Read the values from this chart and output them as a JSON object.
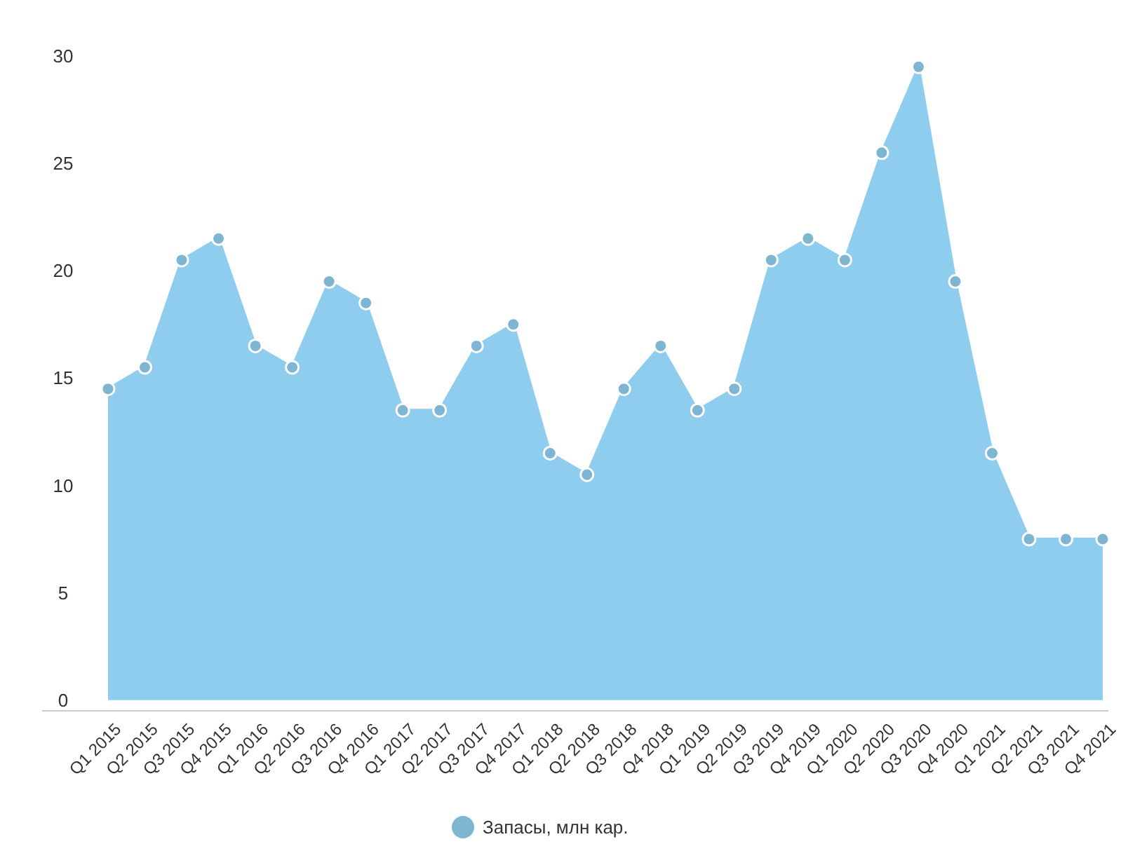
{
  "chart_data": {
    "type": "area",
    "categories": [
      "Q1 2015",
      "Q2 2015",
      "Q3 2015",
      "Q4 2015",
      "Q1 2016",
      "Q2 2016",
      "Q3 2016",
      "Q4 2016",
      "Q1 2017",
      "Q2 2017",
      "Q3 2017",
      "Q4 2017",
      "Q1 2018",
      "Q2 2018",
      "Q3 2018",
      "Q4 2018",
      "Q1 2019",
      "Q2 2019",
      "Q3 2019",
      "Q4 2019",
      "Q1 2020",
      "Q2 2020",
      "Q3 2020",
      "Q4 2020",
      "Q1 2021",
      "Q2 2021",
      "Q3 2021",
      "Q4 2021"
    ],
    "series": [
      {
        "name": "Запасы, млн кар.",
        "color": "#8fcdee",
        "values": [
          14.5,
          15.5,
          20.5,
          21.5,
          16.5,
          15.5,
          19.5,
          18.5,
          13.5,
          13.5,
          16.5,
          17.5,
          11.5,
          10.5,
          14.5,
          16.5,
          13.5,
          14.5,
          20.5,
          21.5,
          20.5,
          25.5,
          29.5,
          19.5,
          11.5,
          7.5,
          7.5,
          7.5
        ]
      }
    ],
    "ylim": [
      -0.5,
      30
    ],
    "yticks": [
      0,
      5,
      10,
      15,
      20,
      25,
      30
    ],
    "marker": "circle",
    "grid": false,
    "legend": "bottom"
  }
}
